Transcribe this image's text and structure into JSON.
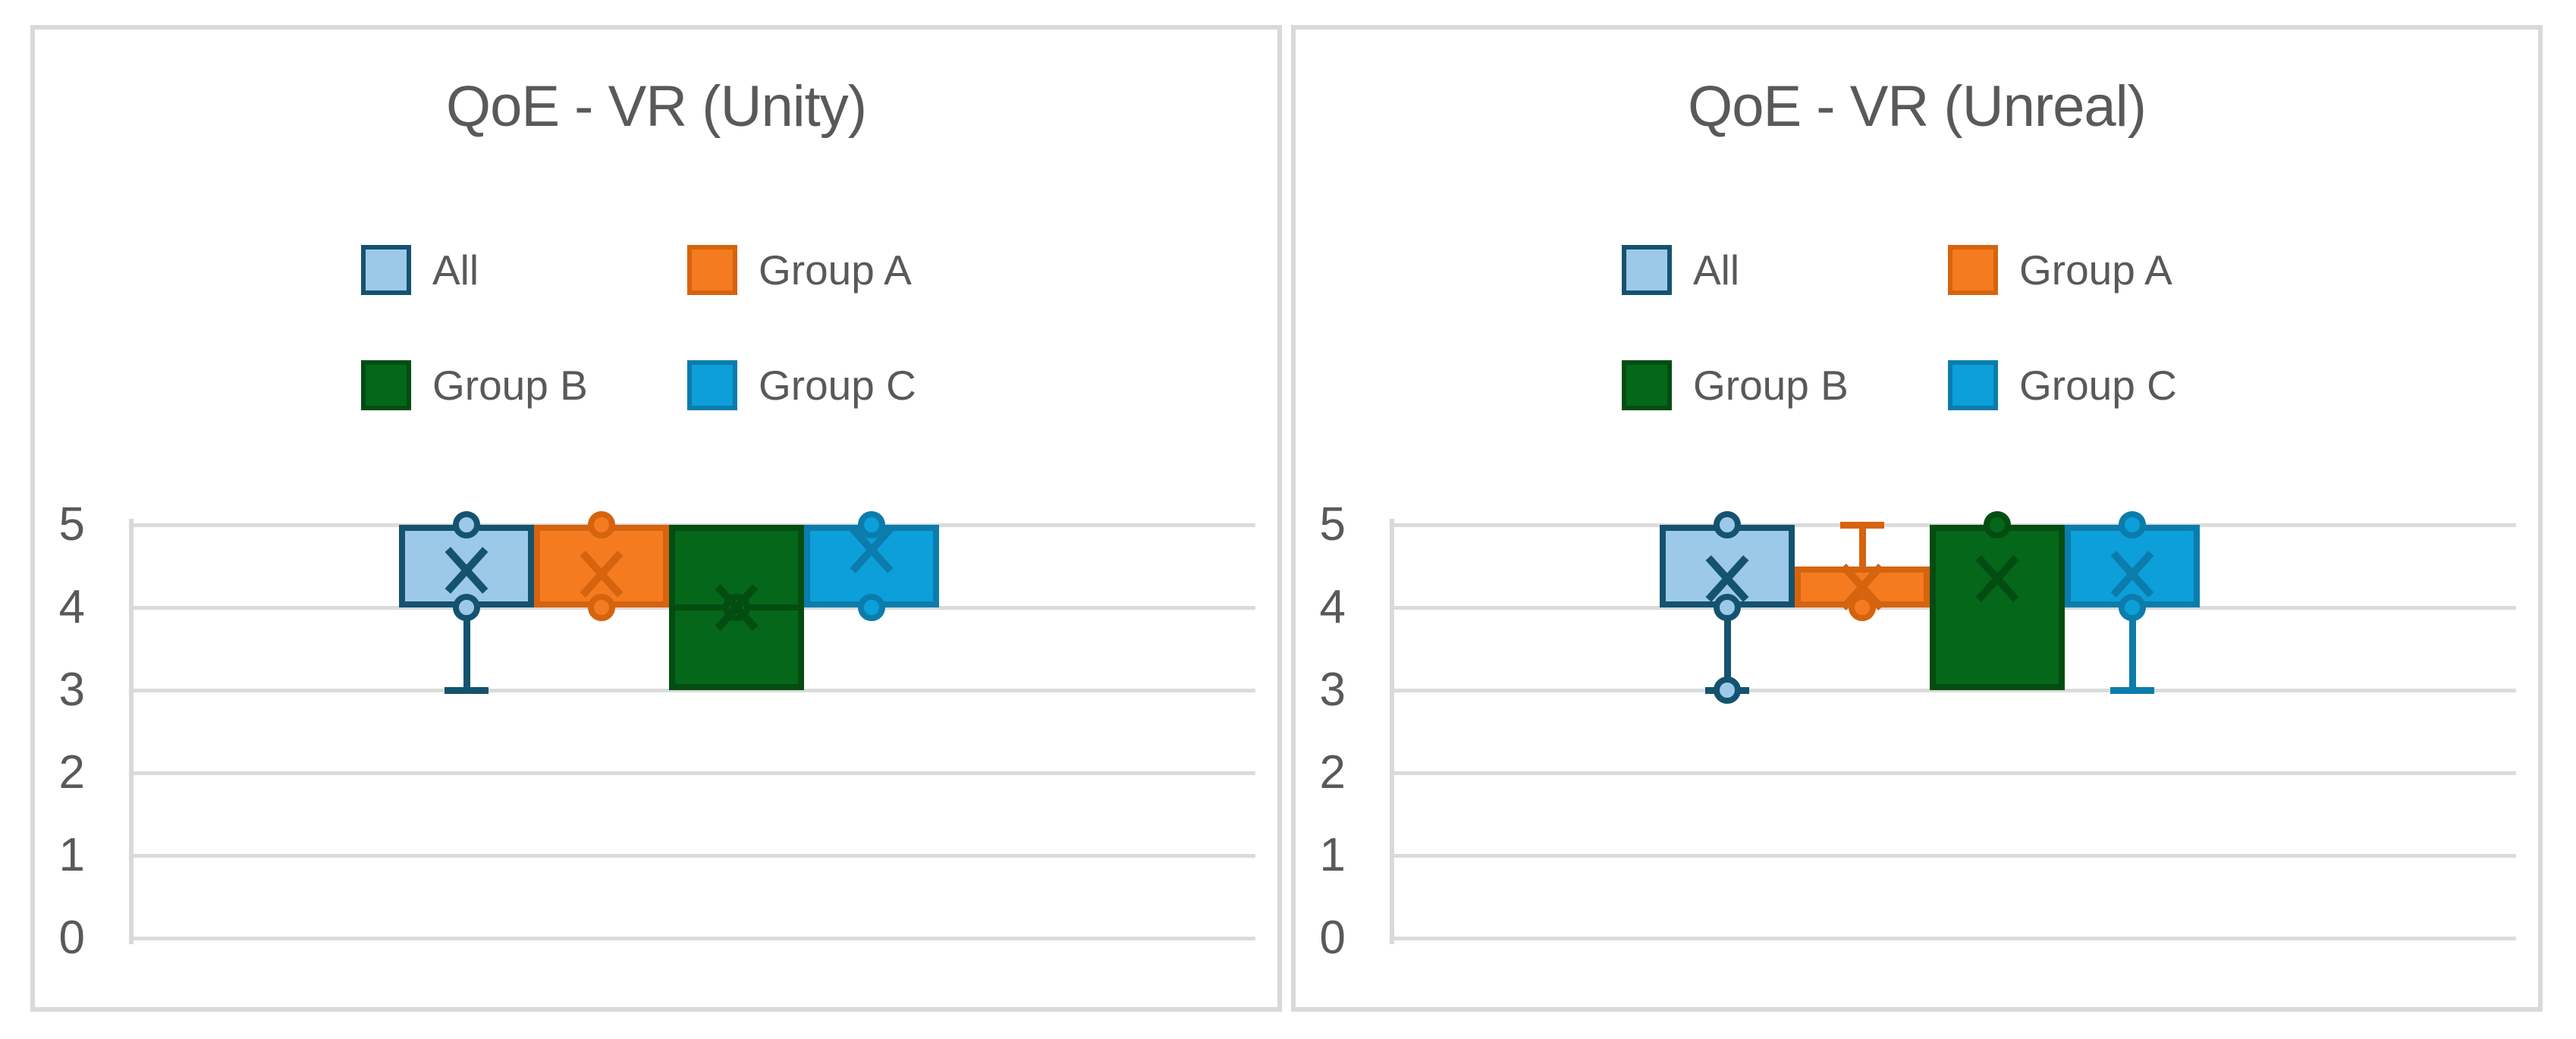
{
  "figure": {
    "background": "#FFFFFF",
    "panel_border_color": "#D9D9D9",
    "gridline_color": "#DBDBDB",
    "axis_line_color": "#D9D9D9",
    "text_color": "#595959"
  },
  "chart_data": [
    {
      "type": "box",
      "title": "QoE - VR (Unity)",
      "ylim": [
        0,
        5
      ],
      "y_ticks": [
        "5",
        "4",
        "3",
        "2",
        "1",
        "0"
      ],
      "grid": "horizontal",
      "legend_position": "top-center-two-rows",
      "series": [
        {
          "name": "All",
          "fill": "#9DC9E9",
          "stroke": "#14536F",
          "box": [
            4,
            5
          ],
          "mean": 4.45,
          "median": null,
          "dots": [
            5,
            4
          ],
          "whisker_low": {
            "to": 3,
            "cap": true
          },
          "whisker_high": null
        },
        {
          "name": "Group A",
          "fill": "#F47B20",
          "stroke": "#D6630D",
          "box": [
            4,
            5
          ],
          "mean": 4.4,
          "median": null,
          "dots": [
            5,
            4
          ],
          "whisker_low": null,
          "whisker_high": null
        },
        {
          "name": "Group B",
          "fill": "#056719",
          "stroke": "#044D12",
          "box": [
            3,
            5
          ],
          "mean": 4.0,
          "median": 4,
          "dots": [
            4
          ],
          "whisker_low": null,
          "whisker_high": null
        },
        {
          "name": "Group C",
          "fill": "#0C9FD9",
          "stroke": "#0C7CAC",
          "box": [
            4,
            5
          ],
          "mean": 4.7,
          "median": null,
          "dots": [
            5,
            4
          ],
          "whisker_low": null,
          "whisker_high": null
        }
      ]
    },
    {
      "type": "box",
      "title": "QoE - VR (Unreal)",
      "ylim": [
        0,
        5
      ],
      "y_ticks": [
        "5",
        "4",
        "3",
        "2",
        "1",
        "0"
      ],
      "grid": "horizontal",
      "legend_position": "top-center-two-rows",
      "series": [
        {
          "name": "All",
          "fill": "#9DC9E9",
          "stroke": "#14536F",
          "box": [
            4,
            5
          ],
          "mean": 4.35,
          "median": null,
          "dots": [
            5,
            4,
            3
          ],
          "whisker_low": {
            "to": 3,
            "cap": true
          },
          "whisker_high": null
        },
        {
          "name": "Group A",
          "fill": "#F47B20",
          "stroke": "#D6630D",
          "box": [
            4,
            4.5
          ],
          "mean": 4.25,
          "median": null,
          "dots": [
            4
          ],
          "whisker_low": null,
          "whisker_high": {
            "to": 5,
            "cap": true
          }
        },
        {
          "name": "Group B",
          "fill": "#056719",
          "stroke": "#044D12",
          "box": [
            3,
            5
          ],
          "mean": 4.35,
          "median": null,
          "dots": [
            5
          ],
          "whisker_low": null,
          "whisker_high": null
        },
        {
          "name": "Group C",
          "fill": "#0C9FD9",
          "stroke": "#0C7CAC",
          "box": [
            4,
            5
          ],
          "mean": 4.4,
          "median": null,
          "dots": [
            5,
            4
          ],
          "whisker_low": {
            "to": 3,
            "cap": true
          },
          "whisker_high": null
        }
      ]
    }
  ]
}
